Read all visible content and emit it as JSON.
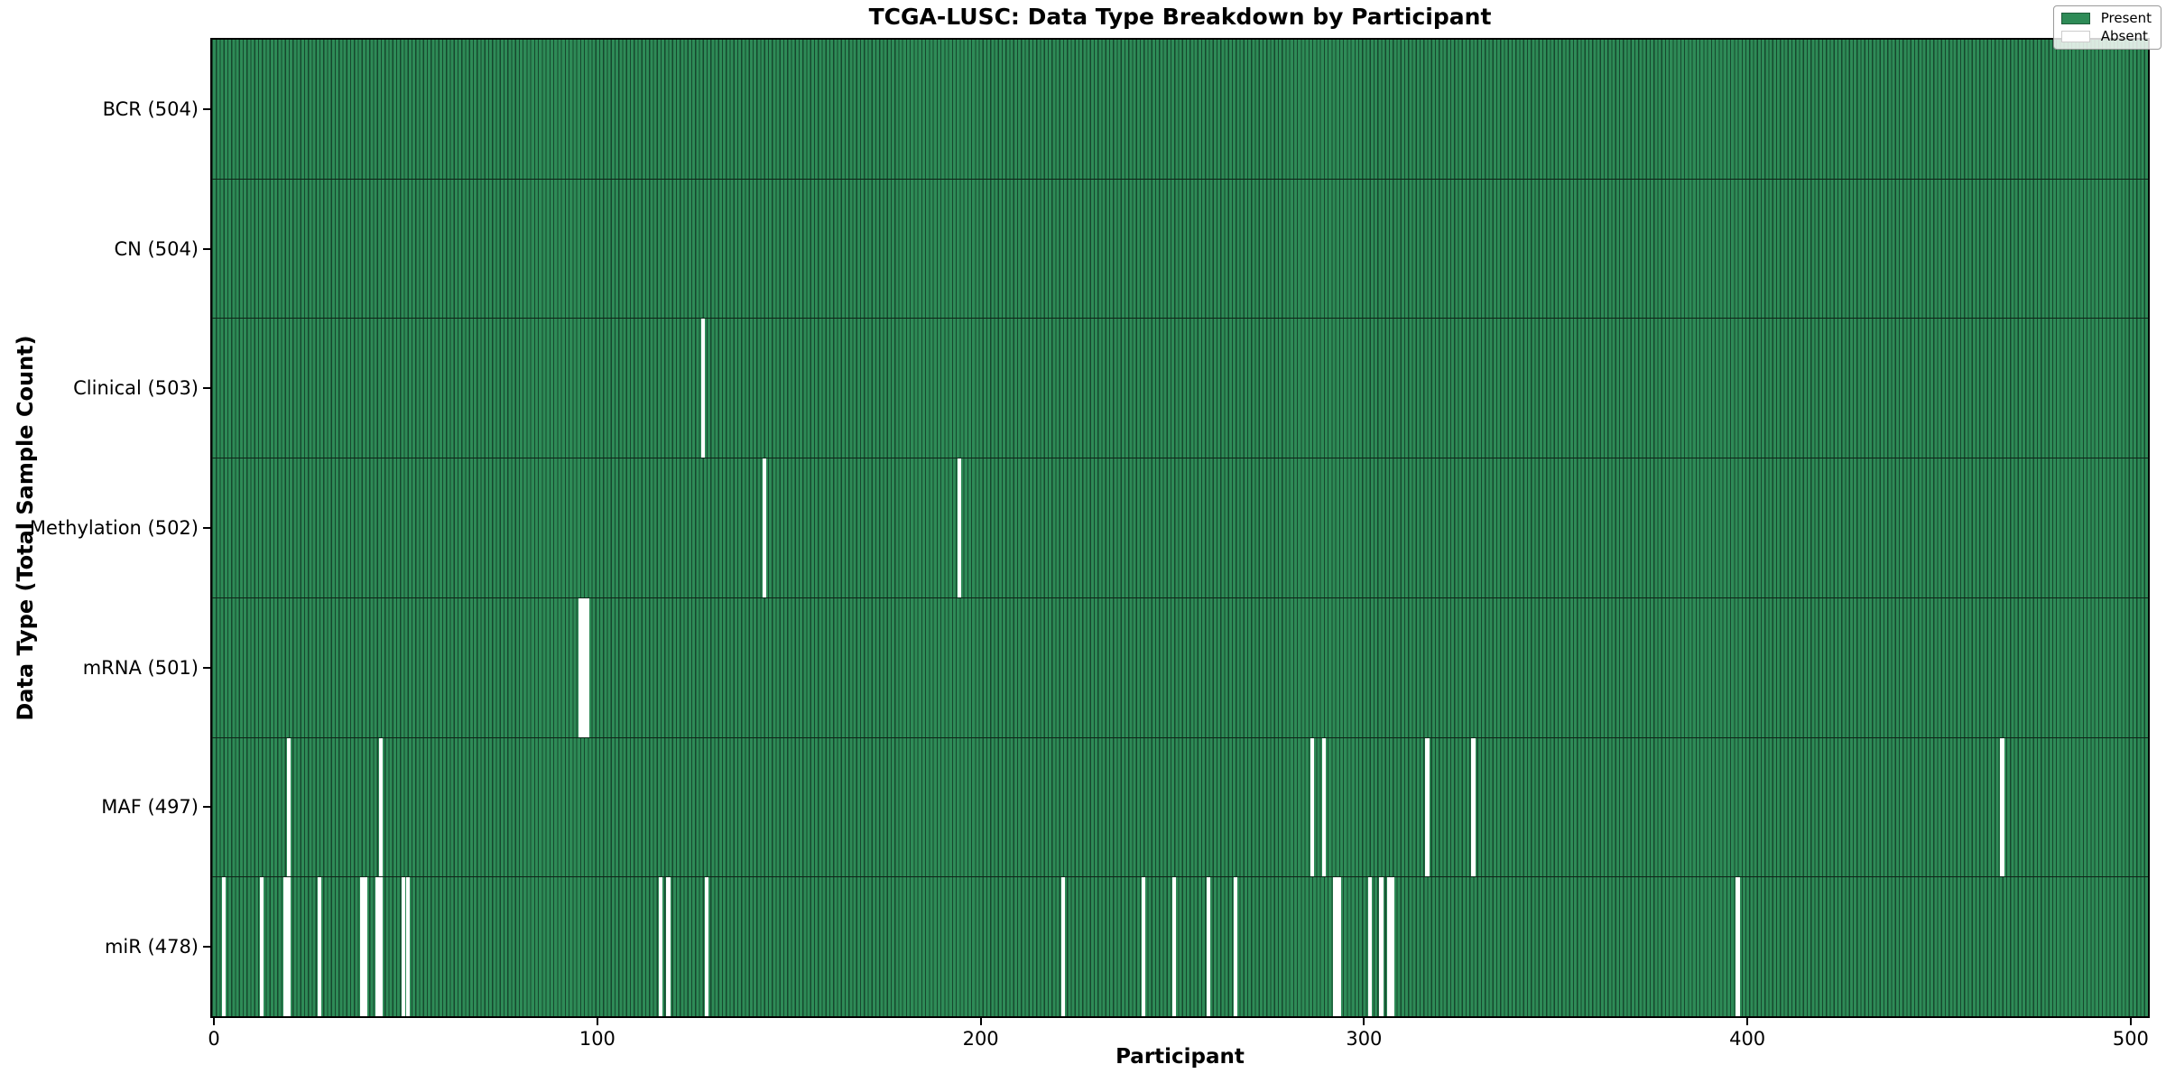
{
  "chart_data": {
    "type": "heatmap",
    "title": "TCGA-LUSC: Data Type Breakdown by Participant",
    "xlabel": "Participant",
    "ylabel": "Data Type (Total Sample Count)",
    "x_ticks": [
      0,
      100,
      200,
      300,
      400,
      500
    ],
    "x_axis_units": 505,
    "n_participants": 504,
    "legend": [
      {
        "label": "Present",
        "color": "#2E8B57",
        "edge": "#1E5C3A"
      },
      {
        "label": "Absent",
        "color": "#FFFFFF",
        "edge": "#CCCCCC"
      }
    ],
    "rows": [
      {
        "label": "BCR",
        "total": 504,
        "display": "BCR (504)",
        "absent": []
      },
      {
        "label": "CN",
        "total": 504,
        "display": "CN (504)",
        "absent": []
      },
      {
        "label": "Clinical",
        "total": 503,
        "display": "Clinical (503)",
        "absent": [
          128
        ]
      },
      {
        "label": "Methylation",
        "total": 502,
        "display": "Methylation (502)",
        "absent": [
          144,
          195
        ]
      },
      {
        "label": "mRNA",
        "total": 501,
        "display": "mRNA (501)",
        "absent": [
          96,
          97,
          98
        ]
      },
      {
        "label": "MAF",
        "total": 497,
        "display": "MAF (497)",
        "absent": [
          20,
          44,
          287,
          290,
          317,
          329,
          467
        ]
      },
      {
        "label": "miR",
        "total": 478,
        "display": "miR (478)",
        "absent": [
          3,
          13,
          19,
          20,
          28,
          39,
          40,
          43,
          44,
          50,
          51,
          117,
          119,
          129,
          222,
          243,
          251,
          260,
          267,
          293,
          294,
          302,
          305,
          307,
          308,
          398
        ]
      }
    ],
    "colors": {
      "present": "#2E8B57",
      "bar_edge": "#16482E",
      "absent": "#FFFFFF",
      "row_divider": "#0E2418",
      "spine": "#000000"
    },
    "layout_hints": {
      "legend_position": "upper right",
      "grid": "off"
    }
  }
}
